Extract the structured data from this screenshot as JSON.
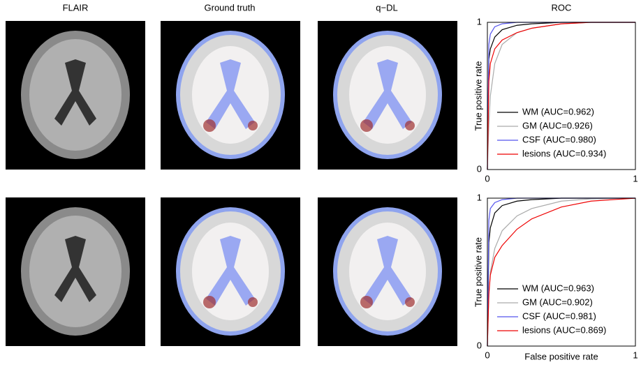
{
  "panel_titles": [
    "FLAIR",
    "Ground truth",
    "q−DL"
  ],
  "chart_data": [
    {
      "type": "line",
      "title": "ROC",
      "ylabel": "True positive rate",
      "x": [
        0,
        0.01,
        0.02,
        0.05,
        0.1,
        0.2,
        0.3,
        0.5,
        0.7,
        1
      ],
      "xlim": [
        0,
        1
      ],
      "ylim": [
        0,
        1
      ],
      "xticks": [
        0,
        1
      ],
      "yticks": [
        0,
        1
      ],
      "series": [
        {
          "name": "WM (AUC=0.962)",
          "color": "#000000",
          "values": [
            0,
            0.75,
            0.82,
            0.9,
            0.95,
            0.98,
            0.99,
            1,
            1,
            1
          ]
        },
        {
          "name": "GM (AUC=0.926)",
          "color": "#aaaaaa",
          "values": [
            0,
            0.3,
            0.5,
            0.72,
            0.85,
            0.93,
            0.96,
            0.99,
            1,
            1
          ]
        },
        {
          "name": "CSF (AUC=0.980)",
          "color": "#5555ee",
          "values": [
            0,
            0.85,
            0.92,
            0.97,
            0.99,
            1,
            1,
            1,
            1,
            1
          ]
        },
        {
          "name": "lesions (AUC=0.934)",
          "color": "#ee0000",
          "values": [
            0,
            0.6,
            0.72,
            0.82,
            0.88,
            0.93,
            0.96,
            0.99,
            1,
            1
          ]
        }
      ]
    },
    {
      "type": "line",
      "ylabel": "True positive rate",
      "xlabel": "False positive rate",
      "x": [
        0,
        0.01,
        0.02,
        0.05,
        0.1,
        0.2,
        0.3,
        0.5,
        0.7,
        1
      ],
      "xlim": [
        0,
        1
      ],
      "ylim": [
        0,
        1
      ],
      "xticks": [
        0,
        1
      ],
      "yticks": [
        0,
        1
      ],
      "series": [
        {
          "name": "WM (AUC=0.963)",
          "color": "#000000",
          "values": [
            0,
            0.7,
            0.8,
            0.9,
            0.95,
            0.98,
            0.99,
            1,
            1,
            1
          ]
        },
        {
          "name": "GM (AUC=0.902)",
          "color": "#aaaaaa",
          "values": [
            0,
            0.35,
            0.5,
            0.66,
            0.78,
            0.88,
            0.93,
            0.98,
            0.995,
            1
          ]
        },
        {
          "name": "CSF (AUC=0.981)",
          "color": "#5555ee",
          "values": [
            0,
            0.85,
            0.93,
            0.97,
            0.99,
            1,
            1,
            1,
            1,
            1
          ]
        },
        {
          "name": "lesions (AUC=0.869)",
          "color": "#ee0000",
          "values": [
            0,
            0.35,
            0.48,
            0.6,
            0.68,
            0.79,
            0.86,
            0.94,
            0.98,
            1
          ]
        }
      ]
    }
  ]
}
